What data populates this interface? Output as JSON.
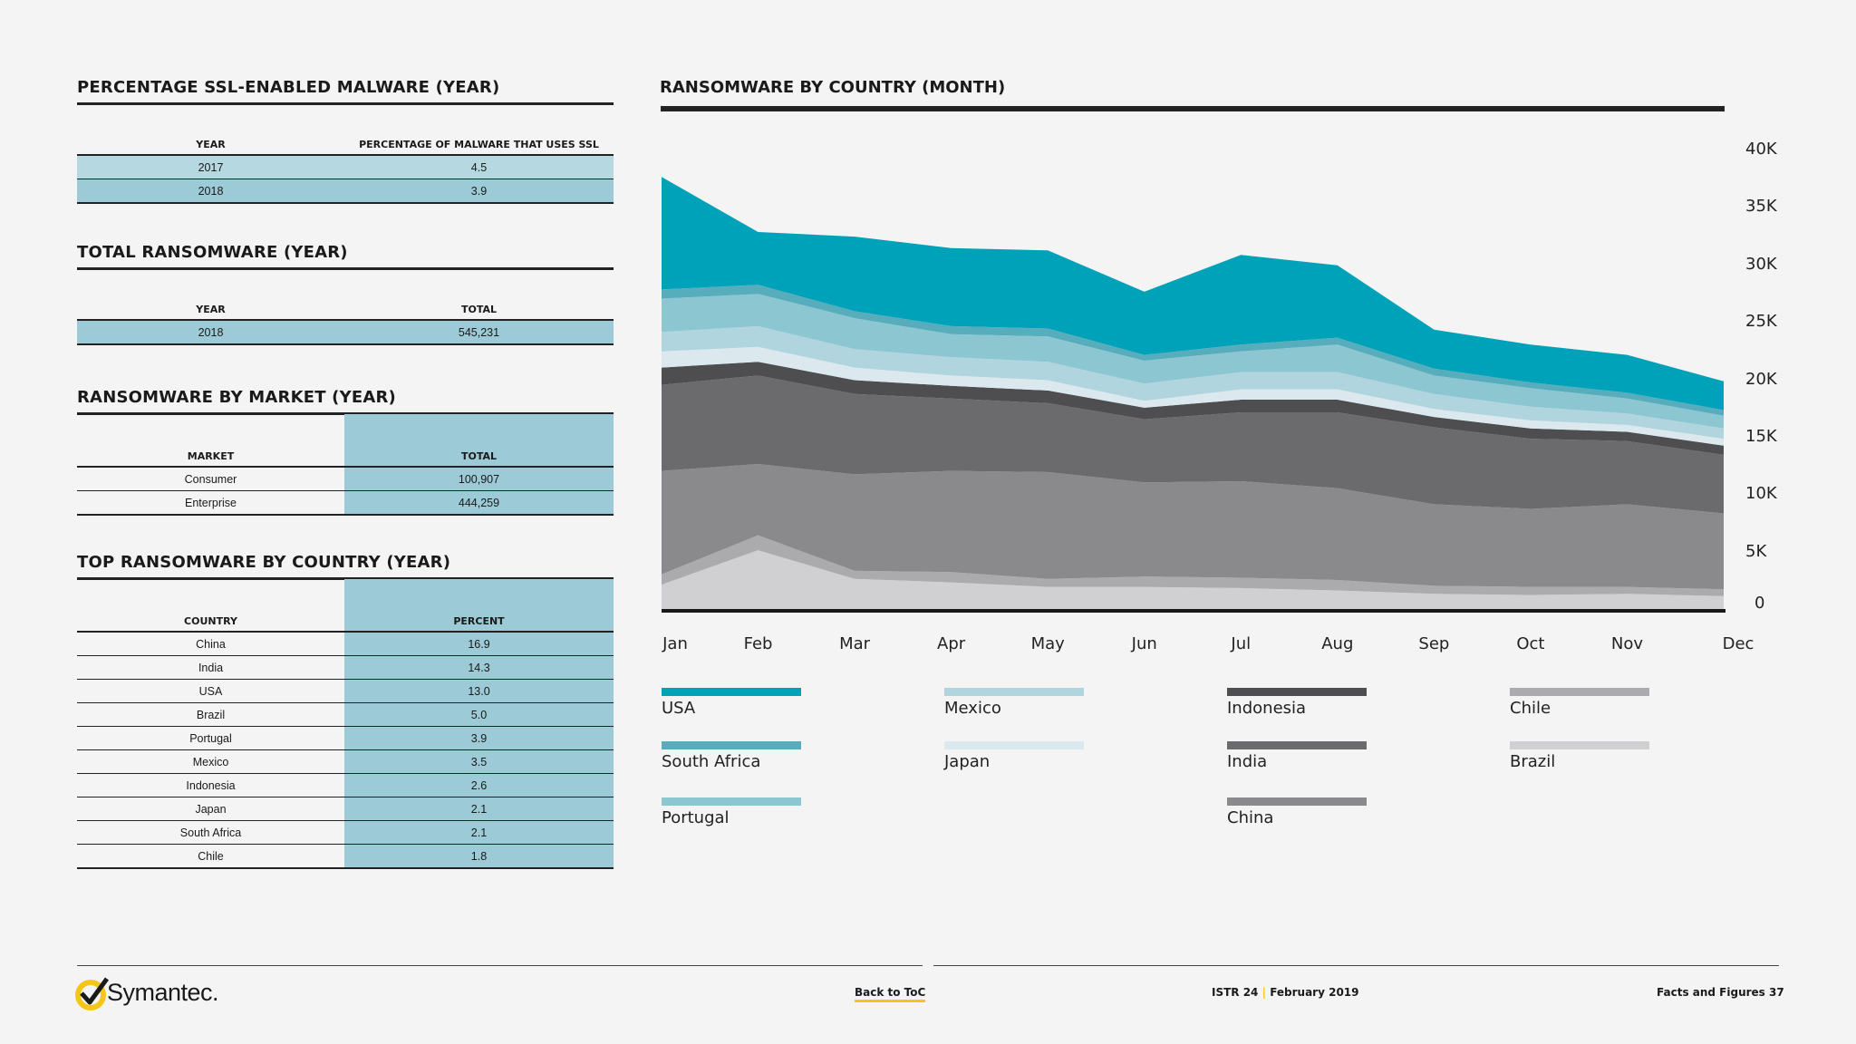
{
  "ssl": {
    "title": "PERCENTAGE SSL-ENABLED MALWARE (YEAR)",
    "headers": [
      "YEAR",
      "PERCENTAGE OF MALWARE THAT USES SSL"
    ],
    "rows": [
      [
        "2017",
        "4.5"
      ],
      [
        "2018",
        "3.9"
      ]
    ]
  },
  "total": {
    "title": "TOTAL RANSOMWARE (YEAR)",
    "headers": [
      "YEAR",
      "TOTAL"
    ],
    "rows": [
      [
        "2018",
        "545,231"
      ]
    ]
  },
  "market": {
    "title": "RANSOMWARE BY MARKET (YEAR)",
    "headers": [
      "MARKET",
      "TOTAL"
    ],
    "rows": [
      [
        "Consumer",
        "100,907"
      ],
      [
        "Enterprise",
        "444,259"
      ]
    ]
  },
  "top": {
    "title": "TOP RANSOMWARE BY COUNTRY (YEAR)",
    "headers": [
      "COUNTRY",
      "PERCENT"
    ],
    "rows": [
      [
        "China",
        "16.9"
      ],
      [
        "India",
        "14.3"
      ],
      [
        "USA",
        "13.0"
      ],
      [
        "Brazil",
        "5.0"
      ],
      [
        "Portugal",
        "3.9"
      ],
      [
        "Mexico",
        "3.5"
      ],
      [
        "Indonesia",
        "2.6"
      ],
      [
        "Japan",
        "2.1"
      ],
      [
        "South Africa",
        "2.1"
      ],
      [
        "Chile",
        "1.8"
      ]
    ]
  },
  "chart_data": {
    "type": "area",
    "title": "RANSOMWARE BY COUNTRY (MONTH)",
    "stacked": true,
    "x": [
      "Jan",
      "Feb",
      "Mar",
      "Apr",
      "May",
      "Jun",
      "Jul",
      "Aug",
      "Sep",
      "Oct",
      "Nov",
      "Dec"
    ],
    "yticks": [
      "0",
      "5K",
      "10K",
      "15K",
      "20K",
      "25K",
      "30K",
      "35K",
      "40K"
    ],
    "ylim": [
      0,
      40000
    ],
    "series": [
      {
        "name": "Brazil",
        "color": "#d0d0d2",
        "values": [
          2200,
          5200,
          2700,
          2400,
          2000,
          2000,
          1900,
          1700,
          1400,
          1300,
          1400,
          1200
        ]
      },
      {
        "name": "Chile",
        "color": "#ababad",
        "values": [
          900,
          1300,
          700,
          900,
          700,
          900,
          900,
          900,
          700,
          700,
          600,
          600
        ]
      },
      {
        "name": "China",
        "color": "#8a898c",
        "values": [
          9000,
          6200,
          8400,
          8800,
          9300,
          8200,
          8400,
          8000,
          7100,
          6800,
          7200,
          6600
        ]
      },
      {
        "name": "India",
        "color": "#6b6a6d",
        "values": [
          7500,
          7700,
          7000,
          6300,
          6000,
          5500,
          6000,
          6600,
          6700,
          6100,
          5500,
          5100
        ]
      },
      {
        "name": "Indonesia",
        "color": "#4e4d50",
        "values": [
          1500,
          1200,
          1200,
          1100,
          1100,
          1000,
          1100,
          1100,
          900,
          900,
          800,
          800
        ]
      },
      {
        "name": "Japan",
        "color": "#dbe9ee",
        "values": [
          1400,
          1300,
          1100,
          900,
          900,
          600,
          900,
          900,
          700,
          700,
          600,
          600
        ]
      },
      {
        "name": "Mexico",
        "color": "#b1d5de",
        "values": [
          1700,
          1800,
          1600,
          1600,
          1600,
          1500,
          1500,
          1500,
          1300,
          1200,
          1000,
          900
        ]
      },
      {
        "name": "Portugal",
        "color": "#8cc7d1",
        "values": [
          2900,
          2800,
          2700,
          2000,
          2200,
          2000,
          1800,
          2400,
          1600,
          1600,
          1300,
          1100
        ]
      },
      {
        "name": "South Africa",
        "color": "#58adbd",
        "values": [
          800,
          800,
          600,
          700,
          700,
          500,
          600,
          600,
          600,
          500,
          500,
          500
        ]
      },
      {
        "name": "USA",
        "color": "#00a2b9",
        "values": [
          9800,
          4600,
          6500,
          6800,
          6800,
          5500,
          7800,
          6300,
          3400,
          3300,
          3300,
          2500
        ]
      }
    ],
    "legend": "bottom"
  },
  "footer": {
    "logo": "Symantec.",
    "back": "Back to ToC",
    "issue": "ISTR 24",
    "sep": "|",
    "date": "February 2019",
    "section": "Facts and Figures",
    "page": "37"
  },
  "colors": {
    "accent_teal": "#00a2b9",
    "table_blue": "#9ccad6",
    "footer_yellow": "#f5c518"
  }
}
